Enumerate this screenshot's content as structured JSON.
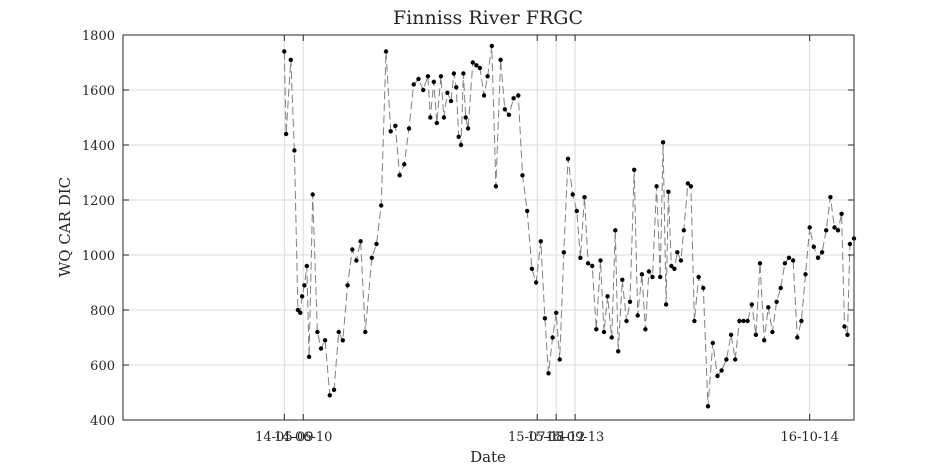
{
  "chart_data": {
    "type": "line",
    "title": "Finniss River FRGC",
    "xlabel": "Date",
    "ylabel": "WQ CAR DIC",
    "ylim": [
      400,
      1800
    ],
    "yticks": [
      400,
      600,
      800,
      1000,
      1200,
      1400,
      1600,
      1800
    ],
    "xlim": [
      "2013-08-09",
      "2016-12-28"
    ],
    "xtick_labels": [
      "14-05-09",
      "14-06-10",
      "15-07-11",
      "15-08-12",
      "15-09-13",
      "16-10-14"
    ],
    "xtick_dates": [
      "2014-05-09",
      "2014-06-10",
      "2015-07-11",
      "2015-08-12",
      "2015-09-13",
      "2016-10-14"
    ],
    "grid": true,
    "line_style": "dashed",
    "line_color": "#808080",
    "marker_color": "#000000",
    "series": [
      {
        "points": [
          [
            "2014-05-09",
            1740
          ],
          [
            "2014-05-12",
            1440
          ],
          [
            "2014-05-20",
            1710
          ],
          [
            "2014-05-26",
            1380
          ],
          [
            "2014-06-01",
            800
          ],
          [
            "2014-06-05",
            790
          ],
          [
            "2014-06-08",
            850
          ],
          [
            "2014-06-12",
            890
          ],
          [
            "2014-06-16",
            960
          ],
          [
            "2014-06-20",
            630
          ],
          [
            "2014-06-26",
            1220
          ],
          [
            "2014-07-04",
            720
          ],
          [
            "2014-07-10",
            660
          ],
          [
            "2014-07-17",
            690
          ],
          [
            "2014-07-25",
            490
          ],
          [
            "2014-08-01",
            510
          ],
          [
            "2014-08-09",
            720
          ],
          [
            "2014-08-16",
            690
          ],
          [
            "2014-08-24",
            890
          ],
          [
            "2014-09-01",
            1020
          ],
          [
            "2014-09-08",
            980
          ],
          [
            "2014-09-15",
            1050
          ],
          [
            "2014-09-23",
            720
          ],
          [
            "2014-10-04",
            990
          ],
          [
            "2014-10-12",
            1040
          ],
          [
            "2014-10-20",
            1180
          ],
          [
            "2014-10-28",
            1740
          ],
          [
            "2014-11-05",
            1450
          ],
          [
            "2014-11-13",
            1470
          ],
          [
            "2014-11-20",
            1290
          ],
          [
            "2014-11-28",
            1330
          ],
          [
            "2014-12-06",
            1460
          ],
          [
            "2014-12-14",
            1620
          ],
          [
            "2014-12-22",
            1640
          ],
          [
            "2014-12-30",
            1600
          ],
          [
            "2015-01-07",
            1650
          ],
          [
            "2015-01-11",
            1500
          ],
          [
            "2015-01-17",
            1630
          ],
          [
            "2015-01-22",
            1480
          ],
          [
            "2015-01-29",
            1650
          ],
          [
            "2015-02-03",
            1500
          ],
          [
            "2015-02-09",
            1590
          ],
          [
            "2015-02-15",
            1560
          ],
          [
            "2015-02-20",
            1660
          ],
          [
            "2015-02-24",
            1610
          ],
          [
            "2015-02-28",
            1430
          ],
          [
            "2015-03-04",
            1400
          ],
          [
            "2015-03-08",
            1660
          ],
          [
            "2015-03-12",
            1500
          ],
          [
            "2015-03-16",
            1460
          ],
          [
            "2015-03-24",
            1700
          ],
          [
            "2015-03-30",
            1690
          ],
          [
            "2015-04-05",
            1680
          ],
          [
            "2015-04-12",
            1580
          ],
          [
            "2015-04-18",
            1650
          ],
          [
            "2015-04-25",
            1760
          ],
          [
            "2015-05-02",
            1250
          ],
          [
            "2015-05-10",
            1710
          ],
          [
            "2015-05-17",
            1530
          ],
          [
            "2015-05-24",
            1510
          ],
          [
            "2015-06-01",
            1570
          ],
          [
            "2015-06-09",
            1580
          ],
          [
            "2015-06-16",
            1290
          ],
          [
            "2015-06-24",
            1160
          ],
          [
            "2015-07-02",
            950
          ],
          [
            "2015-07-09",
            900
          ],
          [
            "2015-07-17",
            1050
          ],
          [
            "2015-07-24",
            770
          ],
          [
            "2015-07-30",
            570
          ],
          [
            "2015-08-06",
            700
          ],
          [
            "2015-08-12",
            790
          ],
          [
            "2015-08-18",
            620
          ],
          [
            "2015-08-25",
            1010
          ],
          [
            "2015-09-01",
            1350
          ],
          [
            "2015-09-09",
            1220
          ],
          [
            "2015-09-16",
            1160
          ],
          [
            "2015-09-22",
            990
          ],
          [
            "2015-09-29",
            1210
          ],
          [
            "2015-10-05",
            970
          ],
          [
            "2015-10-12",
            960
          ],
          [
            "2015-10-19",
            730
          ],
          [
            "2015-10-26",
            980
          ],
          [
            "2015-11-01",
            720
          ],
          [
            "2015-11-07",
            850
          ],
          [
            "2015-11-14",
            700
          ],
          [
            "2015-11-20",
            1090
          ],
          [
            "2015-11-25",
            650
          ],
          [
            "2015-12-02",
            910
          ],
          [
            "2015-12-09",
            760
          ],
          [
            "2015-12-15",
            830
          ],
          [
            "2015-12-22",
            1310
          ],
          [
            "2015-12-28",
            780
          ],
          [
            "2016-01-04",
            930
          ],
          [
            "2016-01-10",
            730
          ],
          [
            "2016-01-16",
            940
          ],
          [
            "2016-01-22",
            920
          ],
          [
            "2016-01-29",
            1250
          ],
          [
            "2016-02-04",
            920
          ],
          [
            "2016-02-09",
            1410
          ],
          [
            "2016-02-14",
            820
          ],
          [
            "2016-02-18",
            1230
          ],
          [
            "2016-02-23",
            960
          ],
          [
            "2016-02-28",
            950
          ],
          [
            "2016-03-04",
            1010
          ],
          [
            "2016-03-10",
            980
          ],
          [
            "2016-03-15",
            1090
          ],
          [
            "2016-03-22",
            1260
          ],
          [
            "2016-03-27",
            1250
          ],
          [
            "2016-04-02",
            760
          ],
          [
            "2016-04-09",
            920
          ],
          [
            "2016-04-17",
            880
          ],
          [
            "2016-04-25",
            450
          ],
          [
            "2016-05-03",
            680
          ],
          [
            "2016-05-11",
            560
          ],
          [
            "2016-05-18",
            580
          ],
          [
            "2016-05-26",
            620
          ],
          [
            "2016-06-03",
            710
          ],
          [
            "2016-06-10",
            620
          ],
          [
            "2016-06-17",
            760
          ],
          [
            "2016-06-24",
            760
          ],
          [
            "2016-07-01",
            760
          ],
          [
            "2016-07-08",
            820
          ],
          [
            "2016-07-15",
            710
          ],
          [
            "2016-07-22",
            970
          ],
          [
            "2016-07-29",
            690
          ],
          [
            "2016-08-05",
            810
          ],
          [
            "2016-08-12",
            720
          ],
          [
            "2016-08-19",
            830
          ],
          [
            "2016-08-26",
            880
          ],
          [
            "2016-09-02",
            970
          ],
          [
            "2016-09-09",
            990
          ],
          [
            "2016-09-16",
            980
          ],
          [
            "2016-09-23",
            700
          ],
          [
            "2016-09-30",
            760
          ],
          [
            "2016-10-07",
            930
          ],
          [
            "2016-10-14",
            1100
          ],
          [
            "2016-10-21",
            1030
          ],
          [
            "2016-10-28",
            990
          ],
          [
            "2016-11-04",
            1010
          ],
          [
            "2016-11-11",
            1090
          ],
          [
            "2016-11-18",
            1210
          ],
          [
            "2016-11-25",
            1100
          ],
          [
            "2016-12-01",
            1090
          ],
          [
            "2016-12-07",
            1150
          ],
          [
            "2016-12-12",
            740
          ],
          [
            "2016-12-17",
            710
          ],
          [
            "2016-12-21",
            1040
          ],
          [
            "2016-12-28",
            1060
          ]
        ]
      }
    ]
  }
}
